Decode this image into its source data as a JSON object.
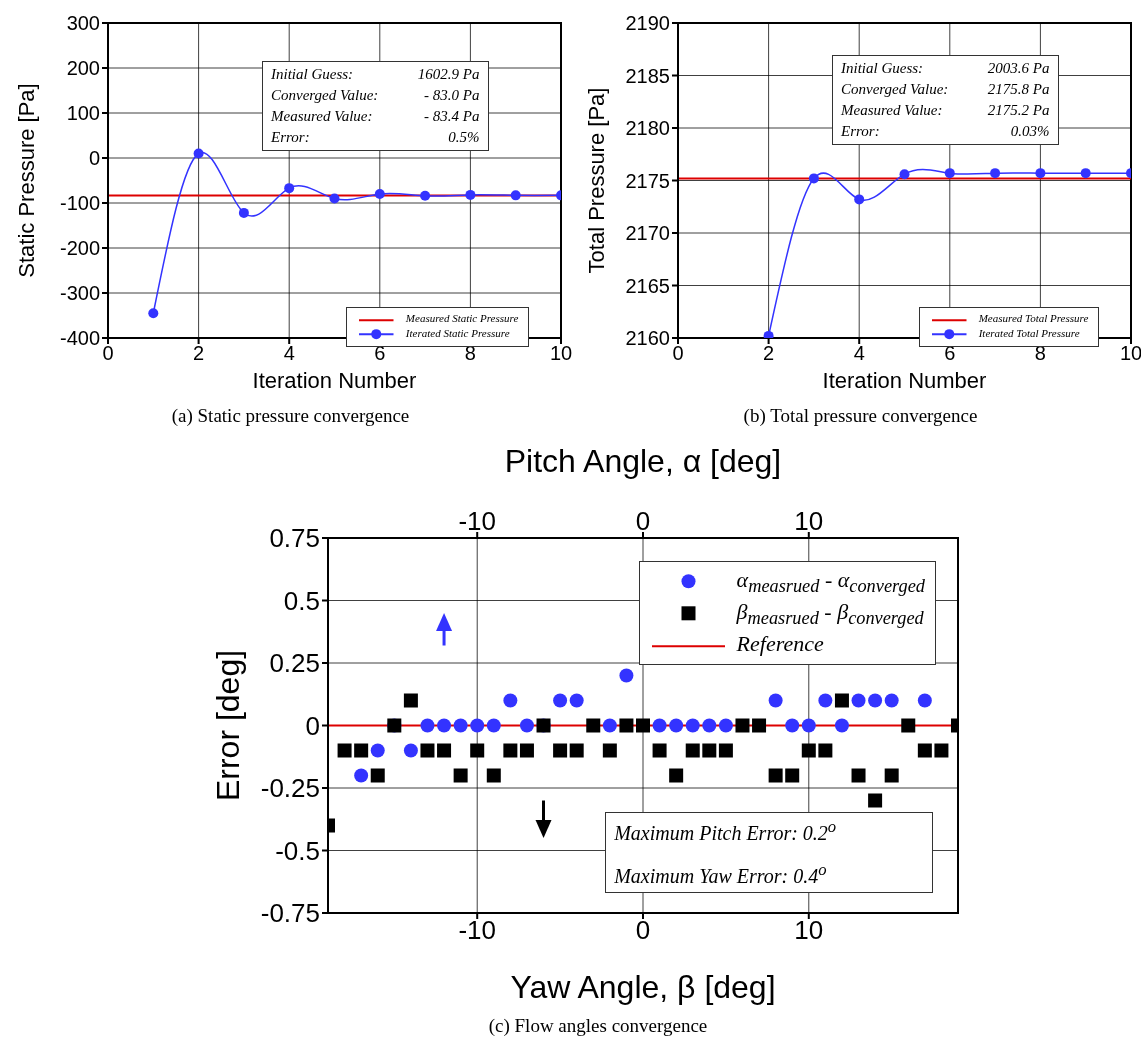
{
  "chart_data": [
    {
      "type": "line",
      "xlabel": "Iteration Number",
      "ylabel": "Static Pressure [Pa]",
      "xlim": [
        0,
        10
      ],
      "xticks": [
        0,
        2,
        4,
        6,
        8,
        10
      ],
      "ylim": [
        -400,
        300
      ],
      "yticks": [
        -400,
        -300,
        -200,
        -100,
        0,
        100,
        200,
        300
      ],
      "grid": true,
      "legend": "bottom right",
      "marker": "circle",
      "line_style": "solid",
      "series": [
        {
          "name": "Iterated Static Pressure",
          "color": "#3333ff",
          "x": [
            1,
            2,
            3,
            4,
            5,
            6,
            7,
            8,
            9,
            10
          ],
          "values": [
            -345,
            10,
            -122,
            -67,
            -90,
            -80,
            -84,
            -82,
            -83,
            -83
          ]
        }
      ],
      "ref_lines": [
        {
          "axis": "y",
          "value": -83.4,
          "label": "Measured Static Pressure",
          "color": "#dd0000"
        }
      ],
      "annotations": [
        "Initial Guess:",
        "1602.9 Pa",
        "Converged Value:",
        "- 83.0 Pa",
        "Measured Value:",
        "- 83.4 Pa",
        "Error:",
        "0.5%",
        "(a) Static pressure convergence"
      ]
    },
    {
      "type": "line",
      "xlabel": "Iteration Number",
      "ylabel": "Total Pressure [Pa]",
      "xlim": [
        0,
        10
      ],
      "xticks": [
        0,
        2,
        4,
        6,
        8,
        10
      ],
      "ylim": [
        2160,
        2190
      ],
      "yticks": [
        2160,
        2165,
        2170,
        2175,
        2180,
        2185,
        2190
      ],
      "grid": true,
      "legend": "bottom right",
      "marker": "circle",
      "line_style": "solid",
      "series": [
        {
          "name": "Iterated Total Pressure",
          "color": "#3333ff",
          "x": [
            2,
            3,
            4,
            5,
            6,
            7,
            8,
            9,
            10
          ],
          "values": [
            2160.2,
            2175.2,
            2173.2,
            2175.6,
            2175.7,
            2175.7,
            2175.7,
            2175.7,
            2175.7
          ]
        }
      ],
      "ref_lines": [
        {
          "axis": "y",
          "value": 2175.2,
          "label": "Measured Total Pressure",
          "color": "#dd0000"
        }
      ],
      "annotations": [
        "Initial Guess:",
        "2003.6 Pa",
        "Converged Value:",
        "2175.8 Pa",
        "Measured Value:",
        "2175.2 Pa",
        "Error:",
        "0.03%",
        "(b) Total pressure convergence"
      ]
    },
    {
      "type": "scatter",
      "xlabel": "Yaw Angle, β [deg]",
      "x2label": "Pitch Angle, α [deg]",
      "ylabel": "Error [deg]",
      "xlim": [
        -19,
        19
      ],
      "xticks": [
        -10,
        0,
        10
      ],
      "x2lim": [
        -19,
        19
      ],
      "x2ticks": [
        -10,
        0,
        10
      ],
      "ylim": [
        -0.75,
        0.75
      ],
      "yticks": [
        -0.75,
        -0.5,
        -0.25,
        0,
        0.25,
        0.5,
        0.75
      ],
      "grid": true,
      "legend": "top right",
      "series": [
        {
          "name": "α$_{measrued}$ - α$_{converged}$",
          "color": "#3333ff",
          "marker": "circle",
          "axis": "x2",
          "x": [
            -17,
            -16,
            -15,
            -14,
            -13,
            -12,
            -11,
            -10,
            -9,
            -8,
            -7,
            -6,
            -5,
            -4,
            -2,
            -1,
            1,
            2,
            3,
            4,
            5,
            8,
            9,
            10,
            11,
            12,
            13,
            14,
            15,
            17
          ],
          "values": [
            -0.2,
            -0.1,
            0,
            -0.1,
            0,
            0,
            0,
            0,
            0,
            0.1,
            0,
            0,
            0.1,
            0.1,
            0,
            0.2,
            0,
            0,
            0,
            0,
            0,
            0.1,
            0,
            0,
            0.1,
            0,
            0.1,
            0.1,
            0.1,
            0.1
          ]
        },
        {
          "name": "β$_{measrued}$ - β$_{converged}$",
          "color": "#000000",
          "marker": "square",
          "x": [
            -19,
            -18,
            -17,
            -16,
            -15,
            -14,
            -13,
            -12,
            -11,
            -10,
            -9,
            -8,
            -7,
            -6,
            -5,
            -4,
            -3,
            -2,
            -1,
            0,
            1,
            2,
            3,
            4,
            5,
            6,
            7,
            8,
            9,
            10,
            11,
            12,
            13,
            14,
            15,
            16,
            17,
            18,
            19
          ],
          "values": [
            -0.4,
            -0.1,
            -0.1,
            -0.2,
            0,
            0.1,
            -0.1,
            -0.1,
            -0.2,
            -0.1,
            -0.2,
            -0.1,
            -0.1,
            0,
            -0.1,
            -0.1,
            0,
            -0.1,
            0,
            0,
            -0.1,
            -0.2,
            -0.1,
            -0.1,
            -0.1,
            0,
            0,
            -0.2,
            -0.2,
            -0.1,
            -0.1,
            0.1,
            -0.2,
            -0.3,
            -0.2,
            0,
            -0.1,
            -0.1,
            0
          ]
        }
      ],
      "ref_lines": [
        {
          "axis": "y",
          "value": 0,
          "label": "Reference",
          "color": "#dd0000"
        }
      ],
      "annotations": [
        "Maximum Pitch Error:  0.2$^{o}$",
        "Maximum Yaw Error:  0.4$^{o}$",
        "(c) Flow angles convergence"
      ]
    }
  ]
}
